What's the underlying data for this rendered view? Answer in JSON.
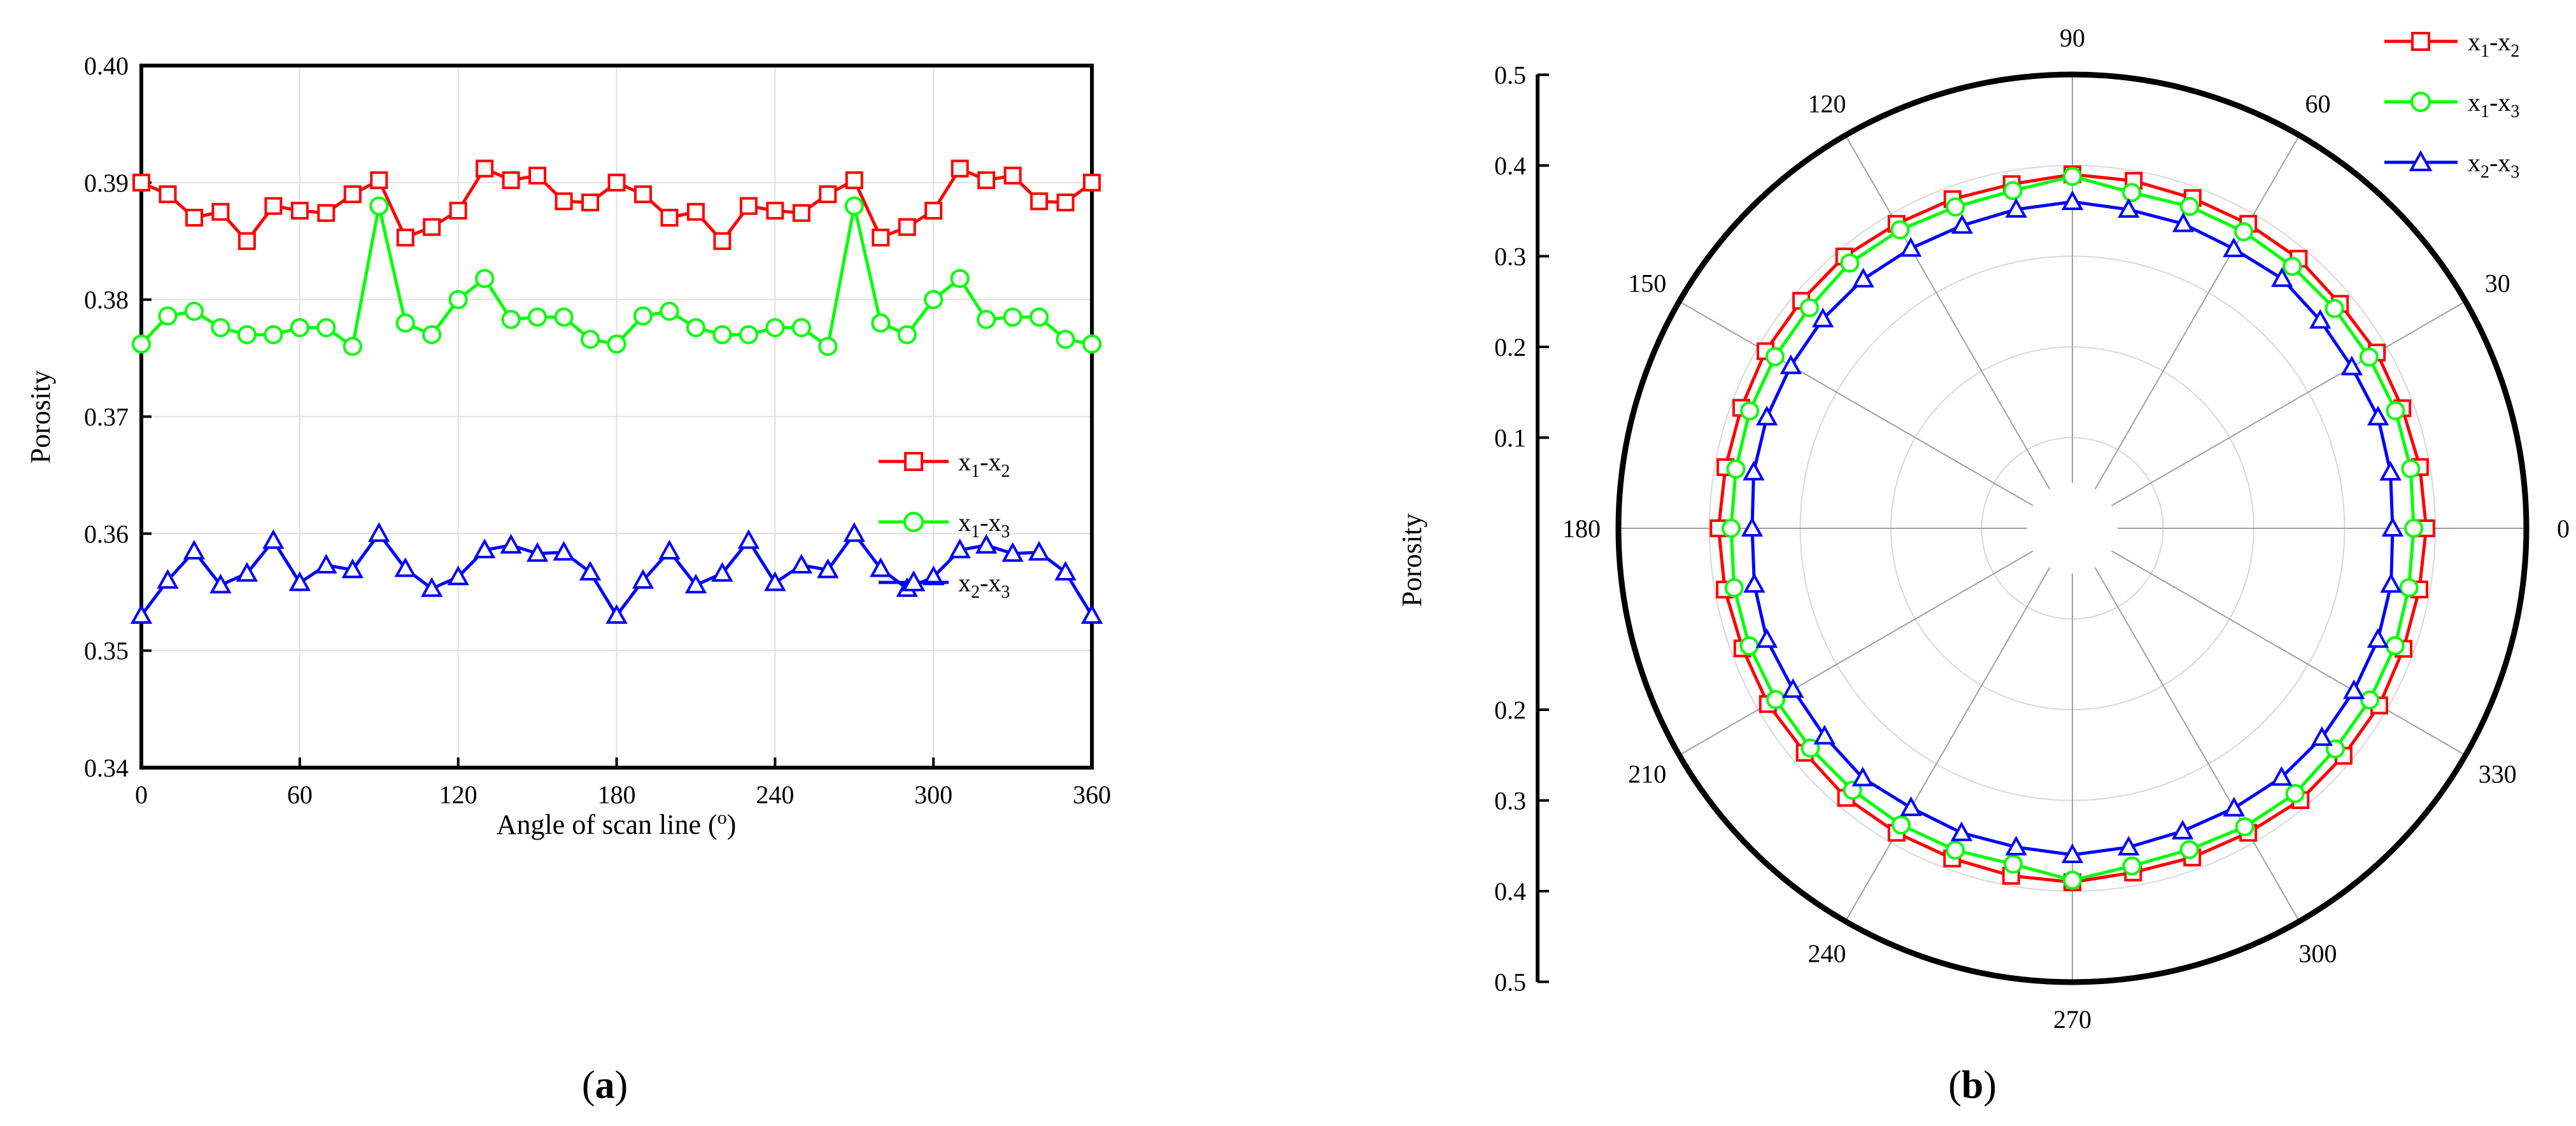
{
  "chart_data": [
    {
      "type": "line",
      "panel": "a",
      "caption_open": "(",
      "caption_letter": "a",
      "caption_close": ")",
      "xlabel": "Angle of scan line (",
      "xlabel_sup": "o",
      "xlabel_end": ")",
      "ylabel": "Porosity",
      "xlim": [
        0,
        360
      ],
      "ylim": [
        0.34,
        0.4
      ],
      "xticks": [
        "0",
        "60",
        "120",
        "180",
        "240",
        "300",
        "360"
      ],
      "yticks": [
        "0.34",
        "0.35",
        "0.36",
        "0.37",
        "0.38",
        "0.39",
        "0.40"
      ],
      "grid": true,
      "legend_position": "right",
      "x": [
        0,
        10,
        20,
        30,
        40,
        50,
        60,
        70,
        80,
        90,
        100,
        110,
        120,
        130,
        140,
        150,
        160,
        170,
        180,
        190,
        200,
        210,
        220,
        230,
        240,
        250,
        260,
        270,
        280,
        290,
        300,
        310,
        320,
        330,
        340,
        350,
        360
      ],
      "series": [
        {
          "name": "x1-x2",
          "label_parts": [
            "x",
            "1",
            "-x",
            "2"
          ],
          "color": "#ff0000",
          "marker": "square",
          "values": [
            0.39,
            0.389,
            0.387,
            0.3875,
            0.385,
            0.388,
            0.3876,
            0.3874,
            0.389,
            0.3902,
            0.3853,
            0.3862,
            0.3876,
            0.3912,
            0.3902,
            0.3906,
            0.3884,
            0.3883,
            0.39,
            0.389,
            0.387,
            0.3875,
            0.385,
            0.388,
            0.3876,
            0.3874,
            0.389,
            0.3902,
            0.3853,
            0.3862,
            0.3876,
            0.3912,
            0.3902,
            0.3906,
            0.3884,
            0.3883,
            0.39
          ]
        },
        {
          "name": "x1-x3",
          "label_parts": [
            "x",
            "1",
            "-x",
            "3"
          ],
          "color": "#00ff00",
          "marker": "circle",
          "values": [
            0.3762,
            0.3786,
            0.379,
            0.3776,
            0.377,
            0.377,
            0.3776,
            0.3776,
            0.376,
            0.388,
            0.378,
            0.377,
            0.38,
            0.3818,
            0.3783,
            0.3785,
            0.3785,
            0.3766,
            0.3762,
            0.3786,
            0.379,
            0.3776,
            0.377,
            0.377,
            0.3776,
            0.3776,
            0.376,
            0.388,
            0.378,
            0.377,
            0.38,
            0.3818,
            0.3783,
            0.3785,
            0.3785,
            0.3766,
            0.3762
          ]
        },
        {
          "name": "x2-x3",
          "label_parts": [
            "x",
            "2",
            "-x",
            "3"
          ],
          "color": "#0000ff",
          "marker": "triangle",
          "values": [
            0.353,
            0.356,
            0.3585,
            0.3556,
            0.3566,
            0.3594,
            0.3558,
            0.3573,
            0.3569,
            0.36,
            0.357,
            0.3553,
            0.3563,
            0.3586,
            0.359,
            0.3583,
            0.3584,
            0.3567,
            0.353,
            0.356,
            0.3585,
            0.3556,
            0.3566,
            0.3594,
            0.3558,
            0.3573,
            0.3569,
            0.36,
            0.357,
            0.3553,
            0.3563,
            0.3586,
            0.359,
            0.3583,
            0.3584,
            0.3567,
            0.353
          ]
        }
      ]
    },
    {
      "type": "polar",
      "panel": "b",
      "caption_open": "(",
      "caption_letter": "b",
      "caption_close": ")",
      "ylabel": "Porosity",
      "rlim": [
        0,
        0.5
      ],
      "radial_ticks_upper": [
        "0.5",
        "0.4",
        "0.3",
        "0.2",
        "0.1"
      ],
      "radial_ticks_lower": [
        "0.2",
        "0.3",
        "0.4",
        "0.5"
      ],
      "angle_ticks": [
        {
          "deg": 0,
          "label": "0"
        },
        {
          "deg": 30,
          "label": "30"
        },
        {
          "deg": 60,
          "label": "60"
        },
        {
          "deg": 90,
          "label": "90"
        },
        {
          "deg": 120,
          "label": "120"
        },
        {
          "deg": 150,
          "label": "150"
        },
        {
          "deg": 180,
          "label": "180"
        },
        {
          "deg": 210,
          "label": "210"
        },
        {
          "deg": 240,
          "label": "240"
        },
        {
          "deg": 270,
          "label": "270"
        },
        {
          "deg": 300,
          "label": "300"
        },
        {
          "deg": 330,
          "label": "330"
        }
      ],
      "grid": true,
      "legend_position": "top-right",
      "theta": [
        0,
        10,
        20,
        30,
        40,
        50,
        60,
        70,
        80,
        90,
        100,
        110,
        120,
        130,
        140,
        150,
        160,
        170,
        180,
        190,
        200,
        210,
        220,
        230,
        240,
        250,
        260,
        270,
        280,
        290,
        300,
        310,
        320,
        330,
        340,
        350,
        360
      ],
      "series": [
        {
          "name": "x1-x2",
          "label_parts": [
            "x",
            "1",
            "-x",
            "2"
          ],
          "color": "#ff0000",
          "marker": "square"
        },
        {
          "name": "x1-x3",
          "label_parts": [
            "x",
            "1",
            "-x",
            "3"
          ],
          "color": "#00ff00",
          "marker": "circle"
        },
        {
          "name": "x2-x3",
          "label_parts": [
            "x",
            "2",
            "-x",
            "3"
          ],
          "color": "#0000ff",
          "marker": "triangle"
        }
      ]
    }
  ]
}
